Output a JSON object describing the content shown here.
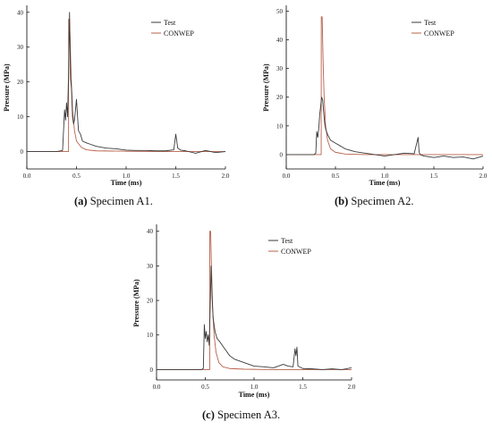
{
  "colors": {
    "test": "#3a3a3a",
    "conwep": "#b8604a",
    "axis": "#000000"
  },
  "chart_data": [
    {
      "id": "a1",
      "type": "line",
      "caption_label": "(a)",
      "caption_text": " Specimen A1.",
      "xlabel": "Time (ms)",
      "ylabel": "Pressure (MPa)",
      "xlim": [
        0,
        2.0
      ],
      "ylim": [
        -5,
        42
      ],
      "xticks": [
        0,
        0.5,
        1.0,
        1.5,
        2.0
      ],
      "xtick_labels": [
        "0.0",
        "0.5",
        "1.0",
        "1.5",
        "2.0"
      ],
      "yticks": [
        0,
        10,
        20,
        30,
        40
      ],
      "ytick_labels": [
        "0",
        "10",
        "20",
        "30",
        "40"
      ],
      "legend": "top-right",
      "series": [
        {
          "name": "Test",
          "key": "test",
          "x": [
            0,
            0.3,
            0.36,
            0.38,
            0.39,
            0.4,
            0.41,
            0.42,
            0.43,
            0.44,
            0.45,
            0.46,
            0.47,
            0.48,
            0.5,
            0.52,
            0.54,
            0.56,
            0.6,
            0.65,
            0.7,
            0.8,
            0.9,
            1.0,
            1.1,
            1.2,
            1.3,
            1.4,
            1.48,
            1.5,
            1.52,
            1.55,
            1.6,
            1.7,
            1.8,
            1.9,
            2.0
          ],
          "y": [
            0,
            0,
            0.3,
            12,
            9,
            14,
            10,
            22,
            40,
            21,
            18,
            10,
            8,
            9,
            15,
            6,
            5,
            3,
            2.5,
            2,
            1.5,
            1,
            0.8,
            0.4,
            0.3,
            0.3,
            0.2,
            0.2,
            0.5,
            5,
            1,
            0.4,
            0.2,
            -0.5,
            0.3,
            -0.3,
            0
          ]
        },
        {
          "name": "CONWEP",
          "key": "conwep",
          "x": [
            0,
            0.42,
            0.421,
            0.43,
            0.44,
            0.45,
            0.46,
            0.48,
            0.5,
            0.55,
            0.6,
            0.7,
            1.0,
            1.4,
            2.0
          ],
          "y": [
            0,
            0,
            38,
            38,
            28,
            19,
            12,
            6,
            3,
            1.2,
            0.5,
            0.2,
            0.1,
            0,
            0
          ]
        }
      ]
    },
    {
      "id": "a2",
      "type": "line",
      "caption_label": "(b)",
      "caption_text": " Specimen A2.",
      "xlabel": "Time (ms)",
      "ylabel": "Pressure (MPa)",
      "xlim": [
        0,
        2.0
      ],
      "ylim": [
        -5,
        52
      ],
      "xticks": [
        0,
        0.5,
        1.0,
        1.5,
        2.0
      ],
      "xtick_labels": [
        "0.0",
        "0.5",
        "1.0",
        "1.5",
        "2.0"
      ],
      "yticks": [
        0,
        10,
        20,
        30,
        40,
        50
      ],
      "ytick_labels": [
        "0",
        "10",
        "20",
        "30",
        "40",
        "50"
      ],
      "legend": "top-right",
      "series": [
        {
          "name": "Test",
          "key": "test",
          "x": [
            0,
            0.28,
            0.3,
            0.31,
            0.32,
            0.33,
            0.34,
            0.35,
            0.36,
            0.37,
            0.38,
            0.39,
            0.4,
            0.42,
            0.45,
            0.5,
            0.55,
            0.6,
            0.7,
            0.8,
            0.9,
            1.0,
            1.1,
            1.2,
            1.3,
            1.34,
            1.35,
            1.36,
            1.4,
            1.5,
            1.6,
            1.7,
            1.8,
            1.9,
            2.0
          ],
          "y": [
            0,
            0,
            0.5,
            8,
            6,
            9,
            14,
            17,
            20,
            19,
            15,
            11,
            9,
            7,
            5,
            4,
            3,
            2,
            1,
            0.5,
            0,
            -0.5,
            0,
            0.5,
            0.3,
            6,
            1,
            0,
            -0.5,
            -1,
            -0.5,
            -1,
            -0.8,
            -1.5,
            -0.5
          ]
        },
        {
          "name": "CONWEP",
          "key": "conwep",
          "x": [
            0,
            0.355,
            0.356,
            0.365,
            0.375,
            0.385,
            0.4,
            0.42,
            0.45,
            0.5,
            0.6,
            0.8,
            1.2,
            1.34,
            2.0
          ],
          "y": [
            0,
            0,
            48,
            48,
            32,
            20,
            10,
            5,
            2,
            0.8,
            0.2,
            0,
            0,
            0,
            0
          ]
        }
      ]
    },
    {
      "id": "a3",
      "type": "line",
      "caption_label": "(c)",
      "caption_text": " Specimen A3.",
      "xlabel": "Time (ms)",
      "ylabel": "Pressure (MPa)",
      "xlim": [
        0,
        2.0
      ],
      "ylim": [
        -3,
        42
      ],
      "xticks": [
        0,
        0.5,
        1.0,
        1.5,
        2.0
      ],
      "xtick_labels": [
        "0.0",
        "0.5",
        "1.0",
        "1.5",
        "2.0"
      ],
      "yticks": [
        0,
        10,
        20,
        30,
        40
      ],
      "ytick_labels": [
        "0",
        "10",
        "20",
        "30",
        "40"
      ],
      "legend": "top-right",
      "series": [
        {
          "name": "Test",
          "key": "test",
          "x": [
            0,
            0.46,
            0.48,
            0.49,
            0.5,
            0.51,
            0.52,
            0.53,
            0.54,
            0.55,
            0.56,
            0.57,
            0.58,
            0.6,
            0.62,
            0.65,
            0.7,
            0.75,
            0.8,
            0.9,
            1.0,
            1.1,
            1.2,
            1.3,
            1.35,
            1.4,
            1.42,
            1.43,
            1.44,
            1.45,
            1.5,
            1.6,
            1.7,
            1.8,
            1.9,
            2.0
          ],
          "y": [
            0,
            0,
            0.3,
            13,
            9,
            11,
            8,
            10,
            7,
            18,
            30,
            21,
            15,
            11,
            9,
            8,
            6,
            4,
            3,
            2,
            1,
            0.8,
            0.5,
            1.5,
            1,
            0.8,
            6,
            4,
            6.5,
            1,
            0.3,
            0.2,
            0,
            0.2,
            0,
            0.5
          ]
        },
        {
          "name": "CONWEP",
          "key": "conwep",
          "x": [
            0,
            0.545,
            0.546,
            0.555,
            0.565,
            0.575,
            0.59,
            0.61,
            0.64,
            0.68,
            0.75,
            0.9,
            1.2,
            2.0
          ],
          "y": [
            0,
            0,
            40,
            40,
            28,
            18,
            10,
            5,
            2,
            0.8,
            0.3,
            0.1,
            0,
            0
          ]
        }
      ]
    }
  ]
}
